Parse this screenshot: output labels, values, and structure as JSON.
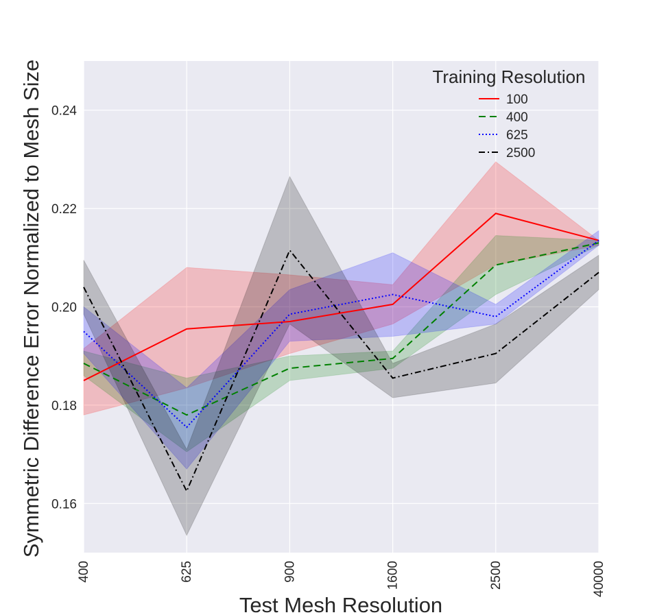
{
  "chart_data": {
    "type": "line",
    "xlabel": "Test Mesh Resolution",
    "ylabel": "Symmetric Difference Error Normalized to Mesh Size",
    "categories": [
      "400",
      "625",
      "900",
      "1600",
      "2500",
      "40000"
    ],
    "ylim": [
      0.15,
      0.25
    ],
    "yticks": [
      0.16,
      0.18,
      0.2,
      0.22,
      0.24
    ],
    "ytick_labels": [
      "0.16",
      "0.18",
      "0.20",
      "0.22",
      "0.24"
    ],
    "grid": true,
    "legend": {
      "title": "Training Resolution",
      "placement": "top-right"
    },
    "series": [
      {
        "name": "100",
        "color": "#ff0000",
        "style": "solid",
        "values": [
          0.185,
          0.1955,
          0.197,
          0.2005,
          0.219,
          0.2135
        ],
        "lower": [
          0.178,
          0.1835,
          0.1905,
          0.1965,
          0.2085,
          0.2125
        ],
        "upper": [
          0.1915,
          0.208,
          0.2065,
          0.2045,
          0.2295,
          0.2135
        ]
      },
      {
        "name": "400",
        "color": "#008000",
        "style": "dashed",
        "values": [
          0.1885,
          0.178,
          0.1875,
          0.1895,
          0.2085,
          0.213
        ],
        "lower": [
          0.186,
          0.1705,
          0.185,
          0.1875,
          0.2025,
          0.2125
        ],
        "upper": [
          0.191,
          0.1855,
          0.19,
          0.191,
          0.2145,
          0.2135
        ]
      },
      {
        "name": "625",
        "color": "#0000ff",
        "style": "dotted",
        "values": [
          0.195,
          0.1755,
          0.1985,
          0.2025,
          0.198,
          0.2135
        ],
        "lower": [
          0.1905,
          0.167,
          0.193,
          0.194,
          0.1965,
          0.2125
        ],
        "upper": [
          0.2,
          0.1835,
          0.2035,
          0.211,
          0.2005,
          0.2155
        ]
      },
      {
        "name": "2500",
        "color": "#000000",
        "style": "dashdot",
        "values": [
          0.204,
          0.1625,
          0.2115,
          0.1855,
          0.1905,
          0.207
        ],
        "lower": [
          0.1985,
          0.1535,
          0.1965,
          0.1815,
          0.1845,
          0.2035
        ],
        "upper": [
          0.2095,
          0.171,
          0.2265,
          0.1885,
          0.1965,
          0.2105
        ]
      }
    ]
  }
}
